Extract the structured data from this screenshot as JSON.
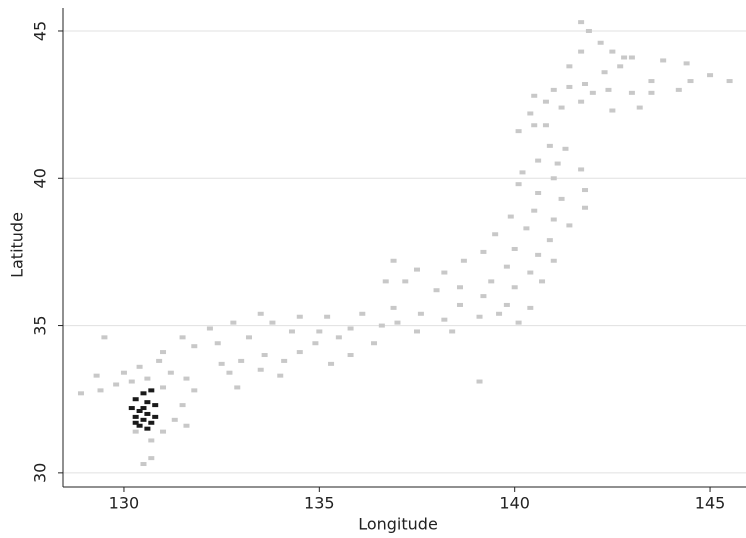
{
  "chart_data": {
    "type": "scatter",
    "x_label": "Longitude",
    "y_label": "Latitude",
    "xlim": [
      128.44,
      145.92
    ],
    "ylim": [
      29.52,
      45.78
    ],
    "xticks": [
      130,
      135,
      140,
      145
    ],
    "yticks": [
      30,
      35,
      40,
      45
    ],
    "grid": true,
    "series": [
      {
        "color": "#c8c8c8",
        "x": [
          141.7,
          141.9,
          142.2,
          142.5,
          143,
          143.8,
          144.4,
          145,
          145.5,
          144.5,
          143.5,
          143,
          143.2,
          142.5,
          141.7,
          141.2,
          140.8,
          140.4,
          140.1,
          140.5,
          140.8,
          141.4,
          141.8,
          142.3,
          142.4,
          141.4,
          141.7,
          142.7,
          143.5,
          144.2,
          141,
          140.5,
          142,
          142.8,
          140.9,
          141.3,
          140.6,
          141.1,
          141.7,
          140.2,
          141,
          141.8,
          140.6,
          140.1,
          141.2,
          141.8,
          140.5,
          141,
          139.9,
          140.3,
          141.4,
          140.9,
          139.5,
          140,
          140.6,
          141,
          139.2,
          139.8,
          140.4,
          140.7,
          140,
          139.4,
          138.7,
          138.2,
          138.6,
          139.2,
          139.8,
          140.4,
          140.1,
          139.6,
          139.1,
          138.6,
          138.2,
          137.6,
          137.5,
          138,
          137.2,
          136.9,
          136.7,
          136.9,
          136.6,
          136.4,
          136.1,
          135.8,
          135.5,
          135.2,
          135.8,
          135.3,
          135,
          134.5,
          134.3,
          133.8,
          133.5,
          133.2,
          132.8,
          132.4,
          132.2,
          131.8,
          131.5,
          131,
          137,
          138.4,
          134.9,
          137.5,
          134.5,
          134.1,
          133.6,
          133.5,
          133,
          132.7,
          132.9,
          134,
          132.5,
          130.9,
          130.4,
          130,
          129.8,
          130.2,
          130.6,
          131.2,
          131.6,
          131.8,
          131.5,
          131.3,
          131,
          130.7,
          130.5,
          130.7,
          129.4,
          128.9,
          129.5,
          131,
          130.3,
          131.6,
          129.3,
          139.1
        ],
        "values": [
          45.3,
          45,
          44.6,
          44.3,
          44.1,
          44,
          43.9,
          43.5,
          43.3,
          43.3,
          43.3,
          42.9,
          42.4,
          42.3,
          42.6,
          42.4,
          42.6,
          42.2,
          41.6,
          41.8,
          41.8,
          43.1,
          43.2,
          43.6,
          43,
          43.8,
          44.3,
          43.8,
          42.9,
          43,
          43,
          42.8,
          42.9,
          44.1,
          41.1,
          41,
          40.6,
          40.5,
          40.3,
          40.2,
          40,
          39.6,
          39.5,
          39.8,
          39.3,
          39,
          38.9,
          38.6,
          38.7,
          38.3,
          38.4,
          37.9,
          38.1,
          37.6,
          37.4,
          37.2,
          37.5,
          37,
          36.8,
          36.5,
          36.3,
          36.5,
          37.2,
          36.8,
          36.3,
          36,
          35.7,
          35.6,
          35.1,
          35.4,
          35.3,
          35.7,
          35.2,
          35.4,
          34.8,
          36.2,
          36.5,
          37.2,
          36.5,
          35.6,
          35,
          34.4,
          35.4,
          34.9,
          34.6,
          35.3,
          34,
          33.7,
          34.8,
          35.3,
          34.8,
          35.1,
          35.4,
          34.6,
          35.1,
          34.4,
          34.9,
          34.3,
          34.6,
          34.1,
          35.1,
          34.8,
          34.4,
          36.9,
          34.1,
          33.8,
          34,
          33.5,
          33.8,
          33.4,
          32.9,
          33.3,
          33.7,
          33.8,
          33.6,
          33.4,
          33,
          33.1,
          33.2,
          33.4,
          33.2,
          32.8,
          32.3,
          31.8,
          31.4,
          31.1,
          30.3,
          30.5,
          32.8,
          32.7,
          34.6,
          32.9,
          31.4,
          31.6,
          33.3,
          33.1
        ]
      },
      {
        "color": "#1a1a1a",
        "x": [
          130.5,
          130.7,
          130.3,
          130.6,
          130.8,
          130.2,
          130.4,
          130.6,
          130.3,
          130.5,
          130.7,
          130.4,
          130.6,
          130.8,
          130.3,
          130.5
        ],
        "values": [
          32.7,
          32.8,
          32.5,
          32.4,
          32.3,
          32.2,
          32.1,
          32,
          31.9,
          31.8,
          31.7,
          31.6,
          31.5,
          31.9,
          31.7,
          32.2
        ]
      }
    ]
  }
}
